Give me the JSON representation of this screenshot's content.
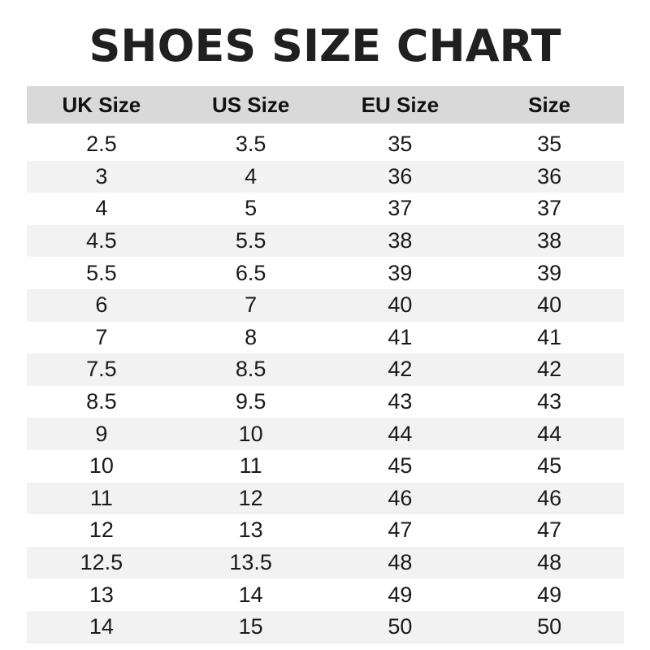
{
  "title": "SHOES SIZE CHART",
  "table": {
    "headers": [
      "UK Size",
      "US Size",
      "EU Size",
      "Size"
    ],
    "rows": [
      [
        "2.5",
        "3.5",
        "35",
        "35"
      ],
      [
        "3",
        "4",
        "36",
        "36"
      ],
      [
        "4",
        "5",
        "37",
        "37"
      ],
      [
        "4.5",
        "5.5",
        "38",
        "38"
      ],
      [
        "5.5",
        "6.5",
        "39",
        "39"
      ],
      [
        "6",
        "7",
        "40",
        "40"
      ],
      [
        "7",
        "8",
        "41",
        "41"
      ],
      [
        "7.5",
        "8.5",
        "42",
        "42"
      ],
      [
        "8.5",
        "9.5",
        "43",
        "43"
      ],
      [
        "9",
        "10",
        "44",
        "44"
      ],
      [
        "10",
        "11",
        "45",
        "45"
      ],
      [
        "11",
        "12",
        "46",
        "46"
      ],
      [
        "12",
        "13",
        "47",
        "47"
      ],
      [
        "12.5",
        "13.5",
        "48",
        "48"
      ],
      [
        "13",
        "14",
        "49",
        "49"
      ],
      [
        "14",
        "15",
        "50",
        "50"
      ]
    ]
  },
  "colors": {
    "header_bg": "#d9d9d9",
    "stripe_bg": "#f2f2f2",
    "text": "#1a1a1a"
  }
}
